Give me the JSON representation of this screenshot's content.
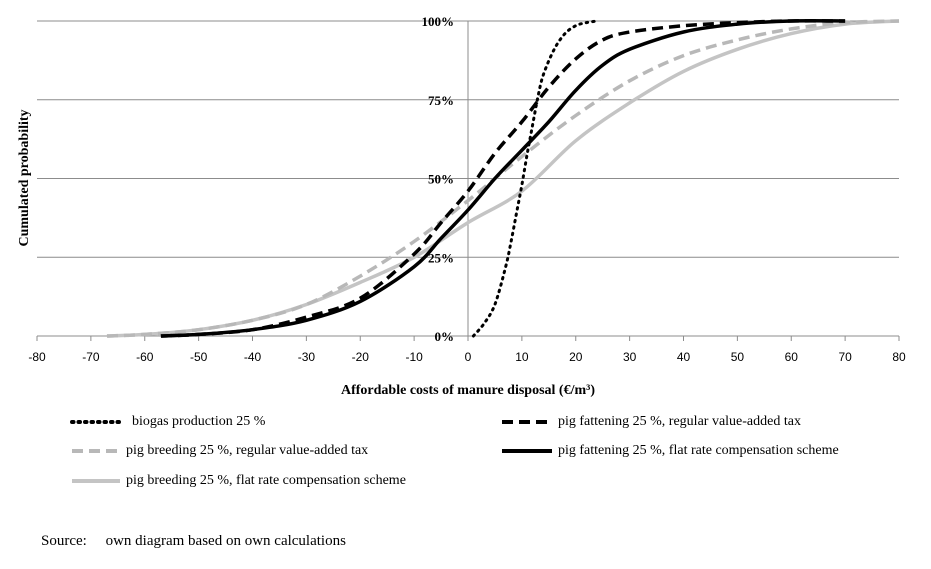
{
  "chart_data": {
    "type": "line",
    "title": "",
    "xlabel": "Affordable costs of manure disposal (€/m³)",
    "ylabel": "Cumulated probability",
    "xlim": [
      -80,
      80
    ],
    "ylim": [
      0,
      100
    ],
    "x_ticks": [
      "-80",
      "-70",
      "-60",
      "-50",
      "-40",
      "-30",
      "-20",
      "-10",
      "0",
      "10",
      "20",
      "30",
      "40",
      "50",
      "60",
      "70",
      "80"
    ],
    "y_ticks": [
      "0%",
      "25%",
      "50%",
      "75%",
      "100%"
    ],
    "grid": "horizontal",
    "legend_position": "bottom",
    "series": [
      {
        "name": "biogas production 25 %",
        "color": "#000000",
        "style": "dotted",
        "x": [
          1,
          3,
          5,
          7,
          8,
          9,
          10,
          11,
          12,
          13,
          14,
          16,
          18,
          20,
          22,
          24
        ],
        "y": [
          0,
          4,
          10,
          22,
          30,
          39,
          48,
          58,
          67,
          76,
          83,
          91,
          96,
          98.5,
          99.5,
          100
        ]
      },
      {
        "name": "pig fattening 25 %, regular value-added tax",
        "color": "#000000",
        "style": "dashed",
        "x": [
          -57,
          -50,
          -40,
          -30,
          -20,
          -10,
          -5,
          0,
          5,
          10,
          15,
          20,
          25,
          30,
          40,
          50,
          60,
          70
        ],
        "y": [
          0,
          0.5,
          2,
          6,
          12,
          26,
          36,
          46,
          58,
          68,
          79,
          88,
          94,
          96.5,
          98.5,
          99.5,
          100,
          100
        ]
      },
      {
        "name": "pig breeding 25 %, regular value-added tax",
        "color": "#b8b8b8",
        "style": "dashed",
        "x": [
          -67,
          -60,
          -50,
          -40,
          -30,
          -20,
          -10,
          0,
          10,
          20,
          30,
          40,
          50,
          60,
          70,
          80
        ],
        "y": [
          0,
          0.5,
          2,
          5,
          10,
          19,
          30,
          43,
          57,
          70,
          81,
          89,
          94,
          97.5,
          99.5,
          100
        ]
      },
      {
        "name": "pig fattening 25 %, flat rate compensation scheme",
        "color": "#000000",
        "style": "solid",
        "x": [
          -57,
          -50,
          -40,
          -30,
          -20,
          -10,
          -5,
          0,
          5,
          10,
          15,
          20,
          25,
          30,
          40,
          50,
          60,
          70
        ],
        "y": [
          0,
          0.5,
          2,
          5,
          11,
          22,
          31,
          40,
          50,
          59,
          68,
          78,
          86,
          91,
          96.5,
          99,
          100,
          100
        ]
      },
      {
        "name": "pig breeding 25 %, flat rate compensation scheme",
        "color": "#c4c4c4",
        "style": "solid",
        "x": [
          -67,
          -60,
          -50,
          -40,
          -30,
          -20,
          -10,
          0,
          10,
          20,
          30,
          40,
          50,
          60,
          70,
          80
        ],
        "y": [
          0,
          0.5,
          2,
          5,
          10,
          17,
          25,
          36,
          46,
          62,
          74,
          84,
          91,
          96,
          99,
          100
        ]
      }
    ]
  },
  "source": {
    "label": "Source:",
    "text": "own diagram based on own calculations"
  }
}
